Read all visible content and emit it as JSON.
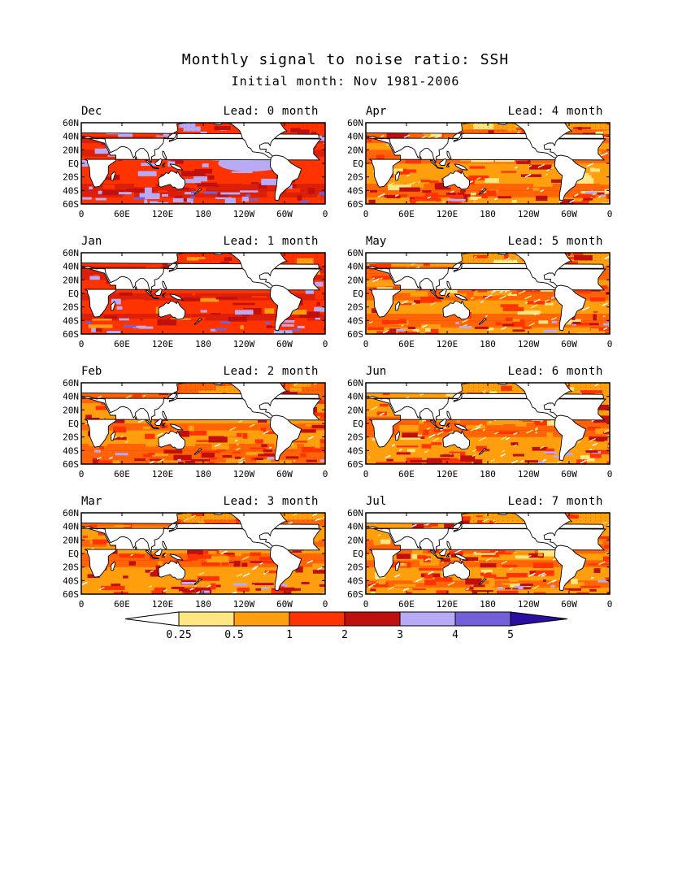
{
  "title": "Monthly signal to noise ratio: SSH",
  "subtitle": "Initial month: Nov 1981-2006",
  "lat_ticks": [
    "60N",
    "40N",
    "20N",
    "EQ",
    "20S",
    "40S",
    "60S"
  ],
  "lon_ticks": [
    "0",
    "60E",
    "120E",
    "180",
    "120W",
    "60W",
    "0"
  ],
  "map_extent": {
    "lon": [
      0,
      360
    ],
    "lat": [
      -60,
      60
    ]
  },
  "panels": [
    {
      "month": "Dec",
      "lead": "Lead: 0 month"
    },
    {
      "month": "Apr",
      "lead": "Lead: 4 month"
    },
    {
      "month": "Jan",
      "lead": "Lead: 1 month"
    },
    {
      "month": "May",
      "lead": "Lead: 5 month"
    },
    {
      "month": "Feb",
      "lead": "Lead: 2 month"
    },
    {
      "month": "Jun",
      "lead": "Lead: 6 month"
    },
    {
      "month": "Mar",
      "lead": "Lead: 3 month"
    },
    {
      "month": "Jul",
      "lead": "Lead: 7 month"
    }
  ],
  "colorbar": {
    "levels": [
      "0.25",
      "0.5",
      "1",
      "2",
      "3",
      "4",
      "5"
    ],
    "colors": [
      "#ffffff",
      "#ffe680",
      "#ff9f0f",
      "#ff3300",
      "#c00f0f",
      "#b8aaf5",
      "#7360d8",
      "#2a0fa0"
    ]
  }
}
